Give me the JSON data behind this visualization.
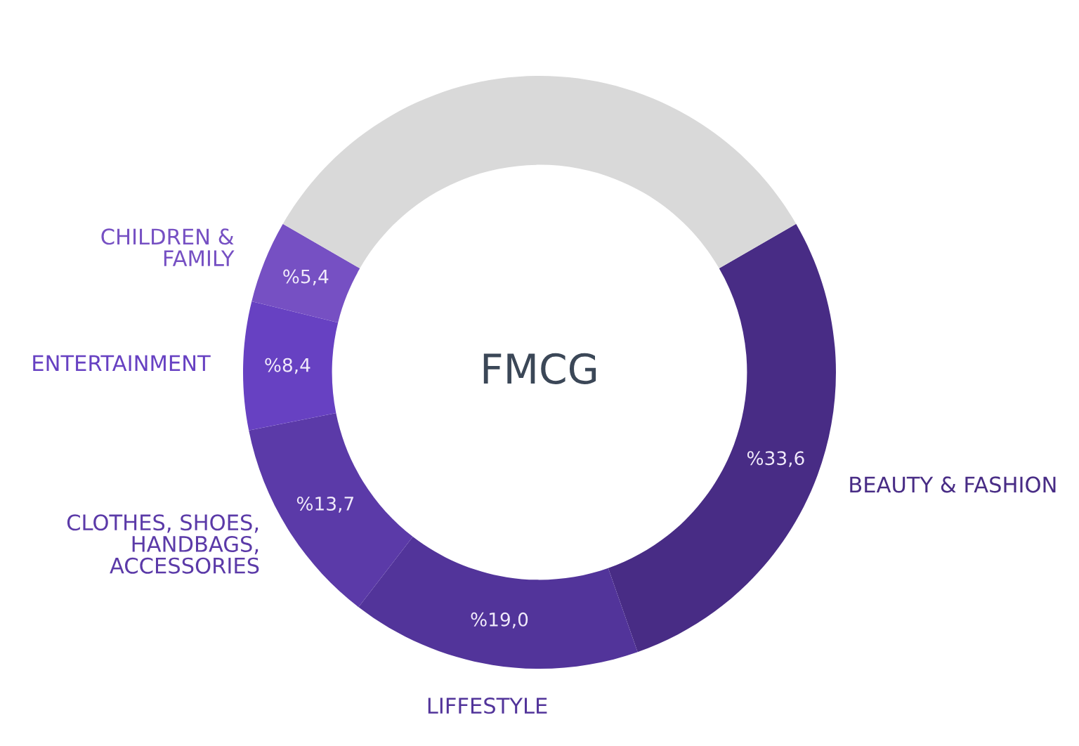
{
  "chart_data": {
    "type": "donut",
    "title": "FMCG",
    "categories": [
      "BEAUTY & FASHION",
      "LIFFESTYLE",
      "CLOTHES, SHOES,\nHANDBAGS,\nACCESSORIES",
      "ENTERTAINMENT",
      "CHILDREN &\nFAMILY",
      null
    ],
    "values": [
      33.6,
      19.0,
      13.7,
      8.4,
      5.4,
      40
    ],
    "colors": [
      "#482c85",
      "#52349a",
      "#5b3aa8",
      "#6741c2",
      "#7650c3",
      "#d9d9d9"
    ],
    "value_labels": [
      "%33,6",
      "%19,0",
      "%13,7",
      "%8,4",
      "%5,4",
      null
    ]
  }
}
